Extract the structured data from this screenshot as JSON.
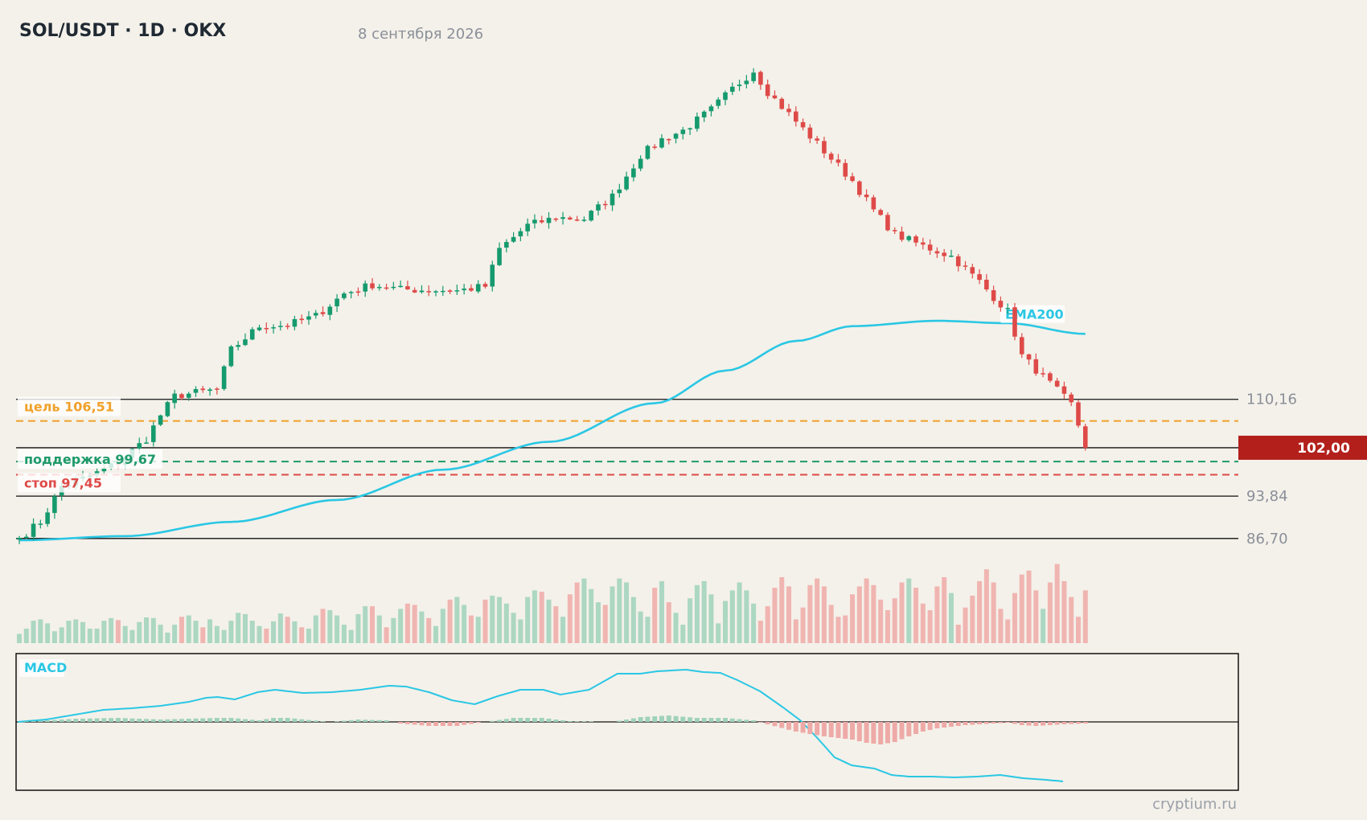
{
  "header": {
    "title": "SOL/USDT · 1D · OKX",
    "date": "8 сентября 2026"
  },
  "watermark": "cryptium.ru",
  "colors": {
    "background": "#f4f1ea",
    "up": "#159a6e",
    "down": "#de4a48",
    "ema": "#2ac7e4",
    "target": "#f0a12a",
    "support": "#1f9a6a",
    "stop": "#de4a48",
    "price_tag": "#b3201c"
  },
  "chart_data": {
    "type": "candlestick",
    "ylim": [
      86.0,
      168.0
    ],
    "price_levels": [
      110.16,
      93.84,
      86.7
    ],
    "price_level_labels": [
      "110,16",
      "93,84",
      "86,70"
    ],
    "current_price": 102.0,
    "current_price_label": "102,00",
    "target": {
      "value": 106.51,
      "label": "цель 106,51"
    },
    "support": {
      "value": 99.67,
      "label": "поддержка 99,67"
    },
    "stop": {
      "value": 97.45,
      "label": "стоп 97,45"
    },
    "ema_label": "EMA200",
    "macd_label": "MACD",
    "key_closes": [
      [
        0,
        86.8
      ],
      [
        3,
        89.5
      ],
      [
        6,
        95.5
      ],
      [
        10,
        97.2
      ],
      [
        14,
        99.5
      ],
      [
        18,
        103.5
      ],
      [
        20,
        107.5
      ],
      [
        22,
        110.7
      ],
      [
        25,
        111.3
      ],
      [
        28,
        111.8
      ],
      [
        30,
        118.5
      ],
      [
        34,
        122.5
      ],
      [
        38,
        122.7
      ],
      [
        42,
        124.2
      ],
      [
        46,
        128
      ],
      [
        50,
        129.5
      ],
      [
        54,
        128.7
      ],
      [
        58,
        128.6
      ],
      [
        62,
        128.5
      ],
      [
        66,
        129.2
      ],
      [
        68,
        135.5
      ],
      [
        72,
        139.5
      ],
      [
        76,
        140.8
      ],
      [
        80,
        140.6
      ],
      [
        84,
        144.4
      ],
      [
        88,
        151.3
      ],
      [
        91,
        154
      ],
      [
        94,
        155.5
      ],
      [
        98,
        159
      ],
      [
        101,
        162.5
      ],
      [
        104,
        165.6
      ],
      [
        106,
        162
      ],
      [
        110,
        157
      ],
      [
        114,
        152
      ],
      [
        118,
        147
      ],
      [
        121,
        142
      ],
      [
        124,
        138
      ],
      [
        128,
        136
      ],
      [
        132,
        134.3
      ],
      [
        136,
        130
      ],
      [
        138,
        127.4
      ],
      [
        140,
        125
      ],
      [
        142,
        117.5
      ],
      [
        146,
        112.8
      ],
      [
        149,
        109.3
      ],
      [
        151,
        102.4
      ]
    ],
    "volume_pattern": [
      14,
      22,
      34,
      36,
      30,
      18,
      24,
      34,
      36,
      32,
      22,
      22,
      34,
      38,
      35,
      26,
      20,
      32,
      39,
      38,
      28,
      16,
      28,
      40,
      42,
      34,
      24,
      36,
      26,
      20,
      34,
      46,
      44,
      34,
      26,
      22,
      33,
      45,
      40,
      33,
      24,
      22,
      42,
      52,
      50,
      42,
      28,
      20,
      44,
      56,
      56,
      42,
      24,
      38,
      52,
      60,
      58,
      48,
      38,
      26,
      52,
      66,
      70,
      58,
      42,
      40,
      66,
      72,
      70,
      60,
      46,
      36,
      70,
      80,
      78,
      66,
      56,
      40,
      74,
      92,
      98,
      82,
      62,
      58,
      86,
      98,
      92,
      70,
      48,
      40,
      84,
      94,
      62,
      46,
      28,
      68,
      88,
      94,
      74,
      30,
      64,
      80,
      92,
      80,
      60,
      34,
      56,
      84,
      100,
      86,
      36,
      54,
      88,
      98,
      86,
      58,
      40,
      42,
      74,
      86,
      98,
      88,
      66,
      50,
      68,
      92,
      98,
      84,
      60,
      50,
      86,
      100,
      76,
      28,
      54,
      72,
      94,
      112,
      92,
      52,
      36,
      76,
      104,
      110,
      80,
      52,
      92,
      120,
      94,
      70,
      40,
      80,
      108,
      98,
      120,
      110,
      82,
      56,
      74,
      112,
      102,
      48,
      28,
      42,
      64,
      88,
      82,
      56,
      78,
      120,
      106,
      78,
      94,
      122,
      110,
      120,
      128,
      124
    ]
  }
}
